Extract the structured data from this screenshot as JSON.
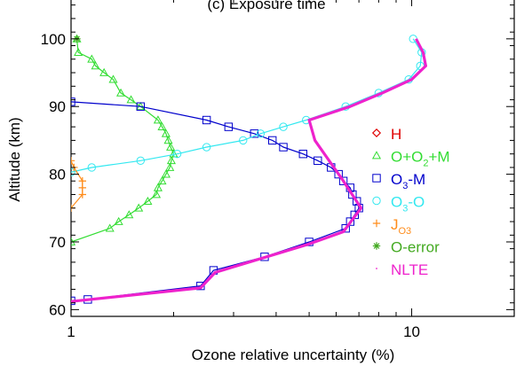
{
  "chart_data": {
    "type": "line",
    "title": "(c) Exposure time",
    "xlabel": "Ozone relative uncertainty (%)",
    "ylabel": "Altitude (km)",
    "xscale": "log",
    "xlim": [
      1,
      20
    ],
    "ylim": [
      59,
      106
    ],
    "xticks": [
      1,
      10
    ],
    "xtick_labels": [
      "1",
      "10"
    ],
    "yticks": [
      60,
      70,
      80,
      90,
      100
    ],
    "ytick_labels": [
      "60",
      "70",
      "80",
      "90",
      "100"
    ],
    "grid": false,
    "legend_position": "right",
    "series": [
      {
        "name": "H",
        "color": "#e00000",
        "marker": "diamond",
        "points": []
      },
      {
        "name": "O+O2+M",
        "name_main": "O+O",
        "name_sub": "2",
        "name_tail": "+M",
        "color": "#33dd33",
        "marker": "triangle",
        "points": [
          [
            1.0,
            70
          ],
          [
            1.3,
            72
          ],
          [
            1.38,
            73
          ],
          [
            1.48,
            74
          ],
          [
            1.58,
            75
          ],
          [
            1.68,
            76
          ],
          [
            1.78,
            77
          ],
          [
            1.8,
            78
          ],
          [
            1.85,
            79
          ],
          [
            1.9,
            80
          ],
          [
            1.95,
            81
          ],
          [
            1.97,
            82
          ],
          [
            2.0,
            83
          ],
          [
            1.96,
            84
          ],
          [
            1.93,
            85
          ],
          [
            1.9,
            86
          ],
          [
            1.85,
            87
          ],
          [
            1.8,
            88
          ],
          [
            1.6,
            90
          ],
          [
            1.5,
            91
          ],
          [
            1.4,
            92
          ],
          [
            1.33,
            94
          ],
          [
            1.25,
            95
          ],
          [
            1.18,
            96
          ],
          [
            1.15,
            97
          ],
          [
            1.05,
            98
          ],
          [
            1.04,
            100
          ]
        ]
      },
      {
        "name": "O3-M",
        "name_main": "O",
        "name_sub": "3",
        "name_tail": "-M",
        "color": "#0000cc",
        "marker": "square",
        "points": [
          [
            1.0,
            61.3
          ],
          [
            1.12,
            61.5
          ],
          [
            2.4,
            63.5
          ],
          [
            2.62,
            65.8
          ],
          [
            3.7,
            67.8
          ],
          [
            5.0,
            70
          ],
          [
            6.4,
            72
          ],
          [
            6.6,
            73
          ],
          [
            6.8,
            74
          ],
          [
            7.0,
            75
          ],
          [
            6.9,
            76
          ],
          [
            6.7,
            77
          ],
          [
            6.6,
            78
          ],
          [
            6.3,
            79
          ],
          [
            6.1,
            80
          ],
          [
            5.8,
            81
          ],
          [
            5.3,
            82
          ],
          [
            4.8,
            83
          ],
          [
            4.2,
            84
          ],
          [
            3.9,
            85
          ],
          [
            3.45,
            86
          ],
          [
            2.9,
            87
          ],
          [
            2.5,
            88
          ],
          [
            1.6,
            90
          ],
          [
            1.0,
            90.7
          ]
        ]
      },
      {
        "name": "O3-O",
        "name_main": "O",
        "name_sub": "3",
        "name_tail": "-O",
        "color": "#33e8f0",
        "marker": "circle",
        "points": [
          [
            1.0,
            80.3
          ],
          [
            1.15,
            81
          ],
          [
            1.6,
            82
          ],
          [
            2.05,
            83
          ],
          [
            2.5,
            84
          ],
          [
            3.2,
            85
          ],
          [
            3.6,
            86
          ],
          [
            4.2,
            87
          ],
          [
            4.9,
            88
          ],
          [
            6.4,
            90
          ],
          [
            8.0,
            92
          ],
          [
            9.8,
            94
          ],
          [
            10.6,
            96
          ],
          [
            10.7,
            98
          ],
          [
            10.1,
            100
          ]
        ]
      },
      {
        "name": "JO3",
        "name_main": "J",
        "name_sub": "O3",
        "name_tail": "",
        "color": "#ff8c1a",
        "marker": "plus",
        "points": [
          [
            1.0,
            75
          ],
          [
            1.08,
            77
          ],
          [
            1.08,
            78
          ],
          [
            1.08,
            79
          ],
          [
            1.02,
            81
          ],
          [
            1.0,
            82
          ]
        ]
      },
      {
        "name": "O-error",
        "color": "#44aa22",
        "marker": "asterisk",
        "points": [
          [
            1.04,
            100
          ]
        ]
      },
      {
        "name": "NLTE",
        "color": "#ee22cc",
        "marker": "dot",
        "thick": true,
        "points": [
          [
            1.0,
            61.2
          ],
          [
            2.4,
            63.2
          ],
          [
            2.65,
            65.5
          ],
          [
            5.0,
            69.7
          ],
          [
            6.3,
            71.5
          ],
          [
            7.1,
            75
          ],
          [
            6.3,
            79
          ],
          [
            5.2,
            85
          ],
          [
            5.0,
            88
          ],
          [
            6.6,
            90
          ],
          [
            8.2,
            92
          ],
          [
            10.0,
            94
          ],
          [
            11.0,
            96
          ],
          [
            10.8,
            98
          ],
          [
            10.3,
            100
          ]
        ]
      }
    ]
  }
}
